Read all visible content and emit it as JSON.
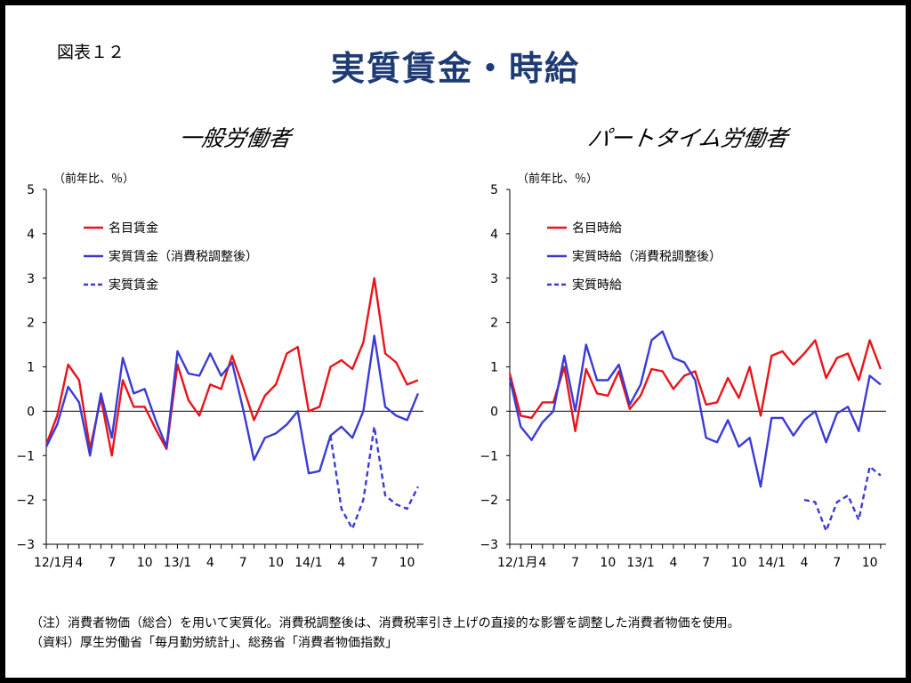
{
  "figure_label": "図表１２",
  "title": "実質賃金・時給",
  "footnotes": {
    "note": "（注）消費者物価（総合）を用いて実質化。消費税調整後は、消費税率引き上げの直接的な影響を調整した消費者物価を使用。",
    "source": "（資料）厚生労働省「毎月勤労統計」、総務省「消費者物価指数」"
  },
  "colors": {
    "nominal": "#e8141a",
    "real": "#3a3ad6",
    "zero_line": "#000000",
    "title": "#1f3b73"
  },
  "chart_data": [
    {
      "type": "line",
      "title": "一般労働者",
      "ylabel": "（前年比、％）",
      "ylim": [
        -3,
        5
      ],
      "yticks": [
        5,
        4,
        3,
        2,
        1,
        0,
        -1,
        -2,
        -3
      ],
      "x_tick_labels": [
        {
          "index": 0,
          "label": "12/1月"
        },
        {
          "index": 3,
          "label": "4"
        },
        {
          "index": 6,
          "label": "7"
        },
        {
          "index": 9,
          "label": "10"
        },
        {
          "index": 12,
          "label": "13/1"
        },
        {
          "index": 15,
          "label": "4"
        },
        {
          "index": 18,
          "label": "7"
        },
        {
          "index": 21,
          "label": "10"
        },
        {
          "index": 24,
          "label": "14/1"
        },
        {
          "index": 27,
          "label": "4"
        },
        {
          "index": 30,
          "label": "7"
        },
        {
          "index": 33,
          "label": "10"
        }
      ],
      "n_points": 35,
      "legend_position": "top-left",
      "series": [
        {
          "name": "名目賃金",
          "color": "#e8141a",
          "style": "solid",
          "start": 0,
          "values": [
            -0.75,
            -0.1,
            1.05,
            0.7,
            -0.85,
            0.3,
            -1.0,
            0.7,
            0.1,
            0.1,
            -0.4,
            -0.85,
            1.05,
            0.25,
            -0.1,
            0.6,
            0.5,
            1.25,
            0.55,
            -0.2,
            0.35,
            0.6,
            1.3,
            1.45,
            0.0,
            0.1,
            1.0,
            1.15,
            0.95,
            1.55,
            3.0,
            1.3,
            1.1,
            0.6,
            0.7
          ]
        },
        {
          "name": "実質賃金（消費税調整後）",
          "color": "#3a3ad6",
          "style": "solid",
          "start": 0,
          "values": [
            -0.8,
            -0.3,
            0.55,
            0.2,
            -1.0,
            0.4,
            -0.6,
            1.2,
            0.4,
            0.5,
            -0.2,
            -0.8,
            1.35,
            0.85,
            0.8,
            1.3,
            0.8,
            1.1,
            0.05,
            -1.1,
            -0.6,
            -0.5,
            -0.3,
            0.0,
            -1.4,
            -1.35,
            -0.55,
            -0.35,
            -0.6,
            0.0,
            1.7,
            0.1,
            -0.1,
            -0.2,
            0.4
          ]
        },
        {
          "name": "実質賃金",
          "color": "#3a3ad6",
          "style": "dashed",
          "start": 26,
          "values": [
            -0.55,
            -2.2,
            -2.65,
            -2.0,
            -0.35,
            -1.9,
            -2.1,
            -2.2,
            -1.7
          ]
        }
      ]
    },
    {
      "type": "line",
      "title": "パートタイム労働者",
      "ylabel": "（前年比、％）",
      "ylim": [
        -3,
        5
      ],
      "yticks": [
        5,
        4,
        3,
        2,
        1,
        0,
        -1,
        -2,
        -3
      ],
      "x_tick_labels": [
        {
          "index": 0,
          "label": "12/1月"
        },
        {
          "index": 3,
          "label": "4"
        },
        {
          "index": 6,
          "label": "7"
        },
        {
          "index": 9,
          "label": "10"
        },
        {
          "index": 12,
          "label": "13/1"
        },
        {
          "index": 15,
          "label": "4"
        },
        {
          "index": 18,
          "label": "7"
        },
        {
          "index": 21,
          "label": "10"
        },
        {
          "index": 24,
          "label": "14/1"
        },
        {
          "index": 27,
          "label": "4"
        },
        {
          "index": 30,
          "label": "7"
        },
        {
          "index": 33,
          "label": "10"
        }
      ],
      "n_points": 35,
      "legend_position": "top-left",
      "series": [
        {
          "name": "名目時給",
          "color": "#e8141a",
          "style": "solid",
          "start": 0,
          "values": [
            0.85,
            -0.1,
            -0.15,
            0.2,
            0.2,
            1.0,
            -0.45,
            0.95,
            0.4,
            0.35,
            0.9,
            0.05,
            0.35,
            0.95,
            0.9,
            0.5,
            0.8,
            0.9,
            0.15,
            0.2,
            0.75,
            0.3,
            1.0,
            -0.1,
            1.25,
            1.35,
            1.05,
            1.3,
            1.6,
            0.75,
            1.2,
            1.3,
            0.7,
            1.6,
            0.95
          ]
        },
        {
          "name": "実質時給（消費税調整後）",
          "color": "#3a3ad6",
          "style": "solid",
          "start": 0,
          "values": [
            0.75,
            -0.35,
            -0.65,
            -0.25,
            0.0,
            1.25,
            0.0,
            1.5,
            0.7,
            0.7,
            1.05,
            0.15,
            0.6,
            1.6,
            1.8,
            1.2,
            1.1,
            0.7,
            -0.6,
            -0.7,
            -0.2,
            -0.8,
            -0.6,
            -1.7,
            -0.15,
            -0.15,
            -0.55,
            -0.2,
            0.0,
            -0.7,
            -0.05,
            0.1,
            -0.45,
            0.8,
            0.6
          ]
        },
        {
          "name": "実質時給",
          "color": "#3a3ad6",
          "style": "dashed",
          "start": 27,
          "values": [
            -2.0,
            -2.05,
            -2.7,
            -2.05,
            -1.9,
            -2.45,
            -1.25,
            -1.45
          ]
        }
      ]
    }
  ]
}
